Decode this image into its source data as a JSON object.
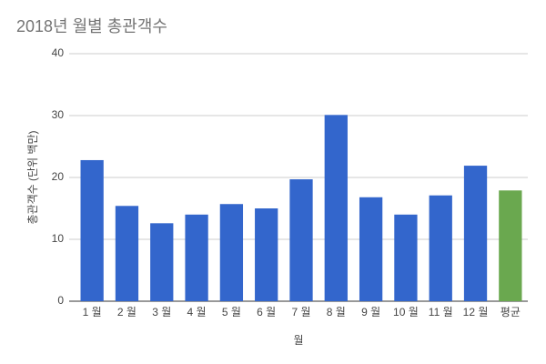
{
  "chart_data": {
    "type": "bar",
    "title": "2018년 월별 총관객수",
    "x_label": "월",
    "y_label": "총관객수 (단위 백만)",
    "categories": [
      "1 월",
      "2 월",
      "3 월",
      "4 월",
      "5 월",
      "6 월",
      "7 월",
      "8 월",
      "9 월",
      "10 월",
      "11 월",
      "12 월",
      "평균"
    ],
    "values": [
      22.8,
      15.4,
      12.6,
      14.0,
      15.7,
      15.0,
      19.7,
      30.1,
      16.8,
      14.0,
      17.1,
      21.9,
      17.9
    ],
    "colors": [
      "#3366cc",
      "#3366cc",
      "#3366cc",
      "#3366cc",
      "#3366cc",
      "#3366cc",
      "#3366cc",
      "#3366cc",
      "#3366cc",
      "#3366cc",
      "#3366cc",
      "#3366cc",
      "#6aa84f"
    ],
    "ylim": [
      0,
      40
    ],
    "yticks": [
      0,
      10,
      20,
      30,
      40
    ],
    "grid": true
  }
}
